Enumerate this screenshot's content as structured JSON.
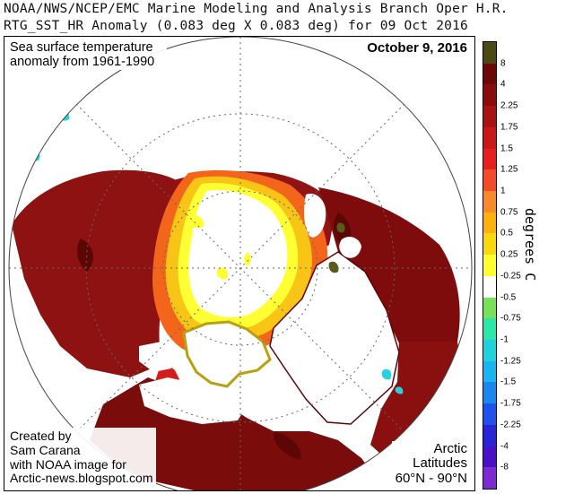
{
  "header": {
    "line1": "NOAA/NWS/NCEP/EMC Marine Modeling and Analysis Branch Oper H.R.",
    "line2": "RTG_SST_HR Anomaly (0.083 deg X 0.083 deg) for 09 Oct 2016"
  },
  "map": {
    "title": "Sea surface temperature anomaly from 1961-1990",
    "date": "October 9, 2016",
    "credit": [
      "Created by",
      "Sam Carana",
      "with NOAA image for",
      "Arctic-news.blogspot.com"
    ],
    "region": [
      "Arctic",
      "Latitudes",
      "60°N - 90°N"
    ]
  },
  "legend": {
    "unit": "degrees C",
    "ticks": [
      "8",
      "4",
      "2.25",
      "1.75",
      "1.5",
      "1.25",
      "1",
      "0.75",
      "0.5",
      "0.25",
      "-0.25",
      "-0.5",
      "-0.75",
      "-1",
      "-1.25",
      "-1.5",
      "-1.75",
      "-2.25",
      "-4",
      "-8"
    ],
    "colors": [
      "#4a4a12",
      "#6e0808",
      "#8a0c0c",
      "#a81212",
      "#c81818",
      "#e61e1e",
      "#f24a2a",
      "#f88a28",
      "#fbb10e",
      "#f9d80c",
      "#ffff30",
      "#ffffff",
      "#7ae05a",
      "#2ce8a8",
      "#20d2dc",
      "#1ab4f0",
      "#1a86f0",
      "#1f52ea",
      "#2a24d8",
      "#4a10c8",
      "#7e2ad4"
    ]
  }
}
